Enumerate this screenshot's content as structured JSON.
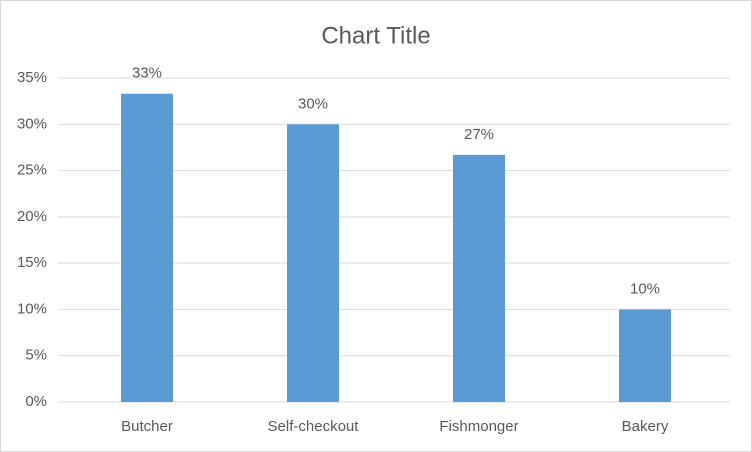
{
  "chart_data": {
    "type": "bar",
    "title": "Chart Title",
    "categories": [
      "Butcher",
      "Self-checkout",
      "Fishmonger",
      "Bakery"
    ],
    "values": [
      33.3,
      30,
      26.7,
      10
    ],
    "value_labels": [
      "33%",
      "30%",
      "27%",
      "10%"
    ],
    "color": "#5b9bd5",
    "ylim": [
      0,
      35
    ],
    "yticks": [
      {
        "value": 0,
        "label": "0%"
      },
      {
        "value": 5,
        "label": "5%"
      },
      {
        "value": 10,
        "label": "10%"
      },
      {
        "value": 15,
        "label": "15%"
      },
      {
        "value": 20,
        "label": "20%"
      },
      {
        "value": 25,
        "label": "25%"
      },
      {
        "value": 30,
        "label": "30%"
      },
      {
        "value": 35,
        "label": "35%"
      }
    ],
    "grid": true
  }
}
